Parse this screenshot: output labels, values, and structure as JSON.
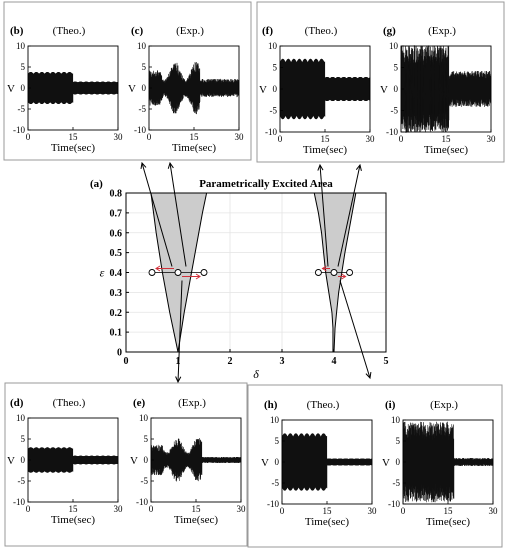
{
  "chart_data": {
    "type": "multi-panel",
    "main": {
      "panel_label": "(a)",
      "title": "Parametrically Excited Area",
      "xlabel": "δ",
      "ylabel": "ε",
      "xlim": [
        0,
        5
      ],
      "ylim": [
        0,
        0.8
      ],
      "xticks": [
        "0",
        "1",
        "2",
        "3",
        "4",
        "5"
      ],
      "yticks": [
        "0",
        "0.1",
        "0.2",
        "0.3",
        "0.4",
        "0.5",
        "0.6",
        "0.7",
        "0.8"
      ],
      "grid": true,
      "region_fill": "#cccccc",
      "regions": [
        {
          "left": [
            [
              1.0,
              0
            ],
            [
              0.92,
              0.1
            ],
            [
              0.84,
              0.2
            ],
            [
              0.77,
              0.3
            ],
            [
              0.7,
              0.4
            ],
            [
              0.64,
              0.5
            ],
            [
              0.58,
              0.6
            ],
            [
              0.53,
              0.7
            ],
            [
              0.48,
              0.8
            ]
          ],
          "right": [
            [
              1.0,
              0
            ],
            [
              1.06,
              0.1
            ],
            [
              1.12,
              0.2
            ],
            [
              1.19,
              0.3
            ],
            [
              1.26,
              0.4
            ],
            [
              1.33,
              0.5
            ],
            [
              1.4,
              0.6
            ],
            [
              1.47,
              0.7
            ],
            [
              1.55,
              0.8
            ]
          ]
        },
        {
          "left": [
            [
              3.98,
              0
            ],
            [
              3.98,
              0.12
            ],
            [
              3.96,
              0.2
            ],
            [
              3.9,
              0.3
            ],
            [
              3.84,
              0.4
            ],
            [
              3.8,
              0.5
            ],
            [
              3.76,
              0.6
            ],
            [
              3.7,
              0.7
            ],
            [
              3.62,
              0.8
            ]
          ],
          "right": [
            [
              4.0,
              0
            ],
            [
              4.02,
              0.12
            ],
            [
              4.05,
              0.2
            ],
            [
              4.09,
              0.3
            ],
            [
              4.15,
              0.4
            ],
            [
              4.21,
              0.5
            ],
            [
              4.28,
              0.6
            ],
            [
              4.35,
              0.7
            ],
            [
              4.42,
              0.8
            ]
          ]
        }
      ],
      "markers": [
        {
          "x": 0.5,
          "y": 0.4
        },
        {
          "x": 1.0,
          "y": 0.4
        },
        {
          "x": 1.5,
          "y": 0.4
        },
        {
          "x": 3.7,
          "y": 0.4
        },
        {
          "x": 4.0,
          "y": 0.4
        },
        {
          "x": 4.3,
          "y": 0.4
        }
      ]
    },
    "subplots": [
      {
        "label": "(b)",
        "title": "(Theo.)",
        "kind": "theo1",
        "ylabel": "V",
        "xlabel": "Time(sec)",
        "xticks": [
          "0",
          "15",
          "30"
        ],
        "yticks": [
          "10",
          "5",
          "0",
          "-5",
          "-10"
        ],
        "amp1": 3.8,
        "amp2": 1.5,
        "switch": 15
      },
      {
        "label": "(c)",
        "title": "(Exp.)",
        "kind": "exp1",
        "ylabel": "V",
        "xlabel": "Time(sec)",
        "xticks": [
          "0",
          "15",
          "30"
        ],
        "yticks": [
          "10",
          "5",
          "0",
          "-5",
          "-10"
        ],
        "amp1": 3.5,
        "amp2": 1.8,
        "switch": 17
      },
      {
        "label": "(f)",
        "title": "(Theo.)",
        "kind": "theo2",
        "ylabel": "V",
        "xlabel": "Time(sec)",
        "xticks": [
          "0",
          "15",
          "30"
        ],
        "yticks": [
          "10",
          "5",
          "0",
          "-5",
          "-10"
        ],
        "amp1": 7.0,
        "amp2": 2.8,
        "switch": 15
      },
      {
        "label": "(g)",
        "title": "(Exp.)",
        "kind": "exp2",
        "ylabel": "V",
        "xlabel": "Time(sec)",
        "xticks": [
          "0",
          "15",
          "30"
        ],
        "yticks": [
          "10",
          "5",
          "0",
          "-5",
          "-10"
        ],
        "amp1": 8.5,
        "amp2": 3.5,
        "switch": 16
      },
      {
        "label": "(d)",
        "title": "(Theo.)",
        "kind": "theo1",
        "ylabel": "V",
        "xlabel": "Time(sec)",
        "xticks": [
          "0",
          "15",
          "30"
        ],
        "yticks": [
          "10",
          "5",
          "0",
          "-5",
          "-10"
        ],
        "amp1": 3.0,
        "amp2": 1.0,
        "switch": 15
      },
      {
        "label": "(e)",
        "title": "(Exp.)",
        "kind": "exp1",
        "ylabel": "V",
        "xlabel": "Time(sec)",
        "xticks": [
          "0",
          "15",
          "30"
        ],
        "yticks": [
          "10",
          "5",
          "0",
          "-5",
          "-10"
        ],
        "amp1": 3.0,
        "amp2": 0.6,
        "switch": 17
      },
      {
        "label": "(h)",
        "title": "(Theo.)",
        "kind": "theo2",
        "ylabel": "V",
        "xlabel": "Time(sec)",
        "xticks": [
          "0",
          "15",
          "30"
        ],
        "yticks": [
          "10",
          "5",
          "0",
          "-5",
          "-10"
        ],
        "amp1": 6.8,
        "amp2": 0.8,
        "switch": 15
      },
      {
        "label": "(i)",
        "title": "(Exp.)",
        "kind": "exp2",
        "ylabel": "V",
        "xlabel": "Time(sec)",
        "xticks": [
          "0",
          "15",
          "30"
        ],
        "yticks": [
          "10",
          "5",
          "0",
          "-5",
          "-10"
        ],
        "amp1": 8.0,
        "amp2": 0.8,
        "switch": 17
      }
    ]
  }
}
